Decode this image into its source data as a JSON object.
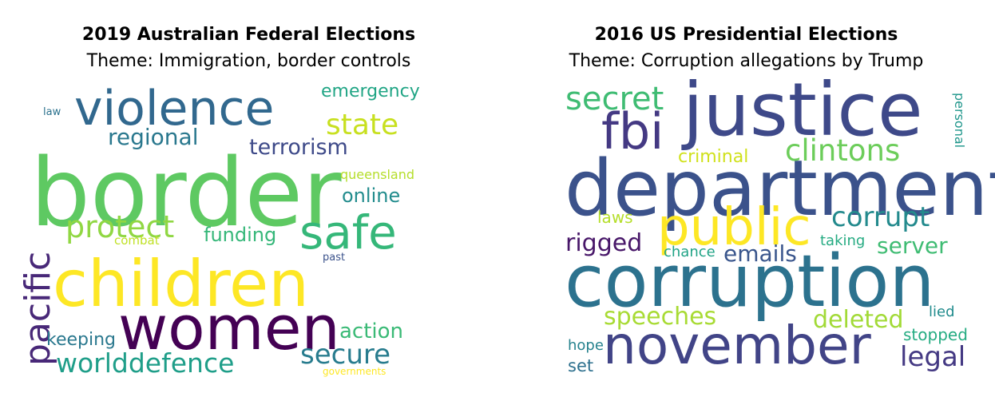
{
  "left": {
    "title": "2019 Australian Federal Elections",
    "subtitle": "Theme: Immigration, border controls",
    "words": [
      {
        "text": "border",
        "color": "#5ec962"
      },
      {
        "text": "children",
        "color": "#fde725"
      },
      {
        "text": "women",
        "color": "#440154"
      },
      {
        "text": "violence",
        "color": "#31688e"
      },
      {
        "text": "safe",
        "color": "#35b779"
      },
      {
        "text": "pacific",
        "color": "#482878"
      },
      {
        "text": "protect",
        "color": "#90d743"
      },
      {
        "text": "state",
        "color": "#c8e020"
      },
      {
        "text": "emergency",
        "color": "#21a585"
      },
      {
        "text": "regional",
        "color": "#2a788e"
      },
      {
        "text": "terrorism",
        "color": "#3e4a89"
      },
      {
        "text": "online",
        "color": "#228c8d"
      },
      {
        "text": "funding",
        "color": "#35b779"
      },
      {
        "text": "queensland",
        "color": "#b5de2b"
      },
      {
        "text": "law",
        "color": "#2c728e"
      },
      {
        "text": "combat",
        "color": "#bfe124"
      },
      {
        "text": "past",
        "color": "#3b528b"
      },
      {
        "text": "action",
        "color": "#3aba76"
      },
      {
        "text": "secure",
        "color": "#287c8e"
      },
      {
        "text": "keeping",
        "color": "#2a788e"
      },
      {
        "text": "worlddefence",
        "color": "#1f9e89"
      },
      {
        "text": "governments",
        "color": "#fde725"
      }
    ]
  },
  "right": {
    "title": "2016 US Presidential Elections",
    "subtitle": "Theme: Corruption allegations by Trump",
    "words": [
      {
        "text": "justice",
        "color": "#3e4989"
      },
      {
        "text": "department",
        "color": "#3b528b"
      },
      {
        "text": "corruption",
        "color": "#2c728e"
      },
      {
        "text": "november",
        "color": "#414487"
      },
      {
        "text": "public",
        "color": "#fde725"
      },
      {
        "text": "fbi",
        "color": "#443983"
      },
      {
        "text": "secret",
        "color": "#3fbc73"
      },
      {
        "text": "clintons",
        "color": "#6ccd5a"
      },
      {
        "text": "criminal",
        "color": "#d0e11c"
      },
      {
        "text": "personal",
        "color": "#1f968b"
      },
      {
        "text": "corrupt",
        "color": "#238a8d"
      },
      {
        "text": "laws",
        "color": "#b5de2b"
      },
      {
        "text": "rigged",
        "color": "#481769"
      },
      {
        "text": "taking",
        "color": "#25ab82"
      },
      {
        "text": "server",
        "color": "#3fbc73"
      },
      {
        "text": "chance",
        "color": "#20a386"
      },
      {
        "text": "emails",
        "color": "#39558c"
      },
      {
        "text": "speeches",
        "color": "#a8db34"
      },
      {
        "text": "deleted",
        "color": "#a2da37"
      },
      {
        "text": "lied",
        "color": "#228c8d"
      },
      {
        "text": "stopped",
        "color": "#25ac82"
      },
      {
        "text": "hope",
        "color": "#26828e"
      },
      {
        "text": "set",
        "color": "#2d708e"
      },
      {
        "text": "legal",
        "color": "#443983"
      }
    ]
  }
}
